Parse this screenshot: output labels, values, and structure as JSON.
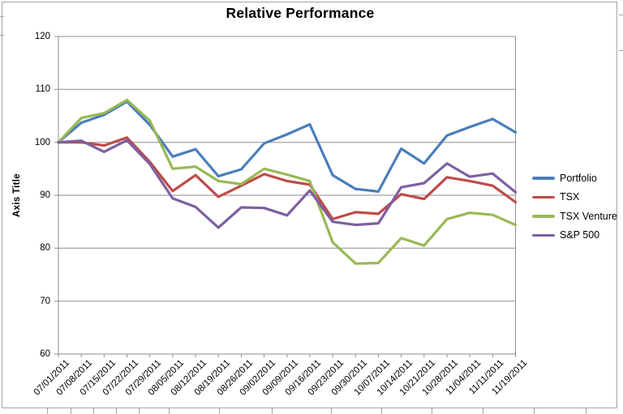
{
  "chart_data": {
    "type": "line",
    "title": "Relative Performance",
    "ylabel": "Axis Title",
    "xlabel": "",
    "ylim": [
      60,
      120
    ],
    "yticks": [
      120,
      110,
      100,
      90,
      80,
      70,
      60
    ],
    "grid": true,
    "legend_position": "right",
    "categories": [
      "07/01/2011",
      "07/08/2011",
      "07/15/2011",
      "07/22/2011",
      "07/29/2011",
      "08/05/2011",
      "08/12/2011",
      "08/19/2011",
      "08/26/2011",
      "09/02/2011",
      "09/09/2011",
      "09/16/2011",
      "09/23/2011",
      "09/30/2011",
      "10/07/2011",
      "10/14/2011",
      "10/21/2011",
      "10/28/2011",
      "11/04/2011",
      "11/11/2011",
      "11/19/2011"
    ],
    "series": [
      {
        "name": "Portfolio",
        "color": "#4A7EBB",
        "values": [
          100,
          103.7,
          105.2,
          107.7,
          103.3,
          97.3,
          98.7,
          93.6,
          94.9,
          99.8,
          101.5,
          103.4,
          93.8,
          91.2,
          90.7,
          98.8,
          96.0,
          101.3,
          102.9,
          104.4,
          101.9
        ]
      },
      {
        "name": "TSX",
        "color": "#BE4B48",
        "values": [
          100,
          100.0,
          99.4,
          100.9,
          96.3,
          90.8,
          93.8,
          89.7,
          91.8,
          94.0,
          92.7,
          92.0,
          85.5,
          86.8,
          86.5,
          90.2,
          89.3,
          93.4,
          92.7,
          91.8,
          88.7
        ]
      },
      {
        "name": "TSX Venture",
        "color": "#98B954",
        "values": [
          100,
          104.6,
          105.5,
          108.0,
          104.1,
          95.0,
          95.4,
          92.7,
          92.1,
          95.0,
          93.9,
          92.7,
          81.1,
          77.1,
          77.2,
          81.9,
          80.5,
          85.5,
          86.7,
          86.3,
          84.4
        ]
      },
      {
        "name": "S&P 500",
        "color": "#7D60A0",
        "values": [
          100,
          100.3,
          98.2,
          100.4,
          95.9,
          89.4,
          87.8,
          83.9,
          87.7,
          87.6,
          86.2,
          90.9,
          85.0,
          84.4,
          84.7,
          91.5,
          92.3,
          96.0,
          93.5,
          94.1,
          90.6
        ]
      }
    ]
  }
}
